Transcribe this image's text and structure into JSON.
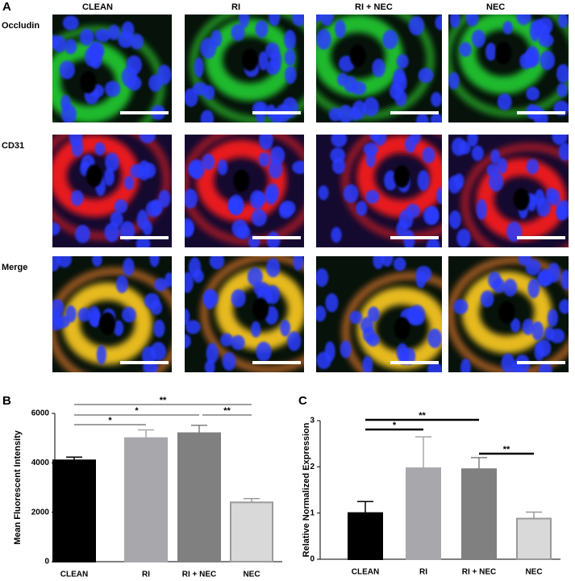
{
  "figure": {
    "panel_labels": [
      "A",
      "B",
      "C"
    ],
    "columns": [
      "CLEAN",
      "RI",
      "RI + NEC",
      "NEC"
    ],
    "rows": [
      "Occludin",
      "CD31",
      "Merge"
    ]
  },
  "chart_data": [
    {
      "type": "bar",
      "ylabel": "Mean Fluorescent Intensity",
      "categories": [
        "CLEAN",
        "RI",
        "RI + NEC",
        "NEC"
      ],
      "values": [
        4100,
        5000,
        5200,
        2400
      ],
      "errors": [
        130,
        330,
        320,
        150
      ],
      "colors": [
        "#000000",
        "#a7a7ac",
        "#808080",
        "#d9d9d9"
      ],
      "edgecolors": [
        "#000000",
        "#a7a7ac",
        "#808080",
        "#9a9a9a"
      ],
      "ylim": [
        0,
        6000
      ],
      "yticks": [
        0,
        2000,
        4000,
        6000
      ],
      "annotations": [
        {
          "text": "**",
          "from": "CLEAN",
          "to": "NEC"
        },
        {
          "text": "*",
          "from": "CLEAN",
          "to": "RI + NEC"
        },
        {
          "text": "**",
          "from": "RI + NEC",
          "to": "NEC"
        },
        {
          "text": "*",
          "from": "CLEAN",
          "to": "RI"
        }
      ]
    },
    {
      "type": "bar",
      "ylabel": "Relative Normalized Expression",
      "categories": [
        "CLEAN",
        "RI",
        "RI + NEC",
        "NEC"
      ],
      "values": [
        1.0,
        1.97,
        1.95,
        0.88
      ],
      "errors": [
        0.25,
        0.68,
        0.25,
        0.14
      ],
      "colors": [
        "#000000",
        "#a7a7ac",
        "#808080",
        "#d9d9d9"
      ],
      "edgecolors": [
        "#000000",
        "#a7a7ac",
        "#808080",
        "#9a9a9a"
      ],
      "ylim": [
        0,
        3
      ],
      "yticks": [
        0,
        1,
        2,
        3
      ],
      "annotations": [
        {
          "text": "**",
          "from": "CLEAN",
          "to": "RI + NEC"
        },
        {
          "text": "*",
          "from": "CLEAN",
          "to": "RI"
        },
        {
          "text": "**",
          "from": "RI + NEC",
          "to": "NEC"
        }
      ]
    }
  ]
}
